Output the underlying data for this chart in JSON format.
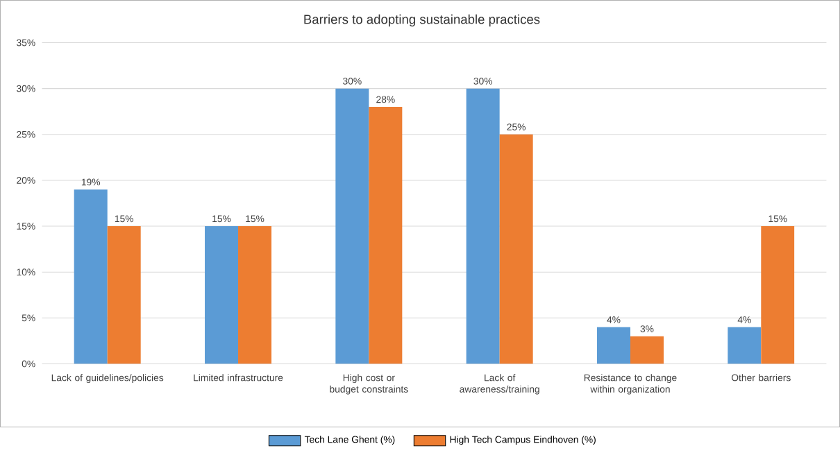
{
  "chart_data": {
    "type": "bar",
    "title": "Barriers to adopting sustainable practices",
    "categories": [
      "Lack of guidelines/policies",
      "Limited infrastructure",
      "High cost or budget constraints",
      "Lack of awareness/training",
      "Resistance to change within organization",
      "Other barriers"
    ],
    "series": [
      {
        "name": "Tech Lane Ghent (%)",
        "color": "#5b9bd5",
        "values": [
          19,
          15,
          30,
          30,
          4,
          4
        ],
        "value_labels": [
          "19%",
          "15%",
          "30%",
          "30%",
          "4%",
          "4%"
        ]
      },
      {
        "name": "High Tech Campus Eindhoven (%)",
        "color": "#ed7d31",
        "values": [
          15,
          15,
          28,
          25,
          3,
          15
        ],
        "value_labels": [
          "15%",
          "15%",
          "28%",
          "25%",
          "3%",
          "15%"
        ]
      }
    ],
    "ylim": [
      0,
      35
    ],
    "yticks": [
      {
        "value": 0,
        "label": "0%"
      },
      {
        "value": 5,
        "label": "5%"
      },
      {
        "value": 10,
        "label": "10%"
      },
      {
        "value": 15,
        "label": "15%"
      },
      {
        "value": 20,
        "label": "20%"
      },
      {
        "value": 25,
        "label": "25%"
      },
      {
        "value": 30,
        "label": "30%"
      },
      {
        "value": 35,
        "label": "35%"
      }
    ],
    "grid": "y",
    "legend": "bottom"
  }
}
